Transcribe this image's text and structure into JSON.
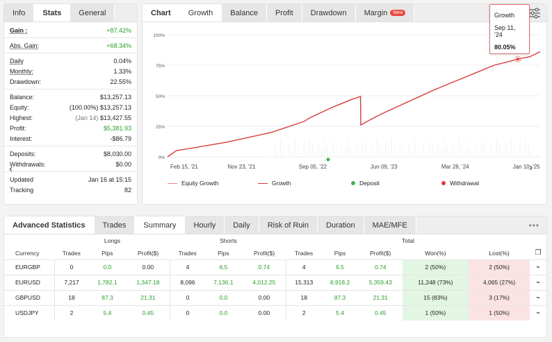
{
  "left_tabs": [
    "Info",
    "Stats",
    "General"
  ],
  "stats": {
    "gain_label": "Gain :",
    "gain": "+87.42%",
    "abs_gain_label": "Abs. Gain:",
    "abs_gain": "+68.34%",
    "daily_label": "Daily",
    "daily": "0.04%",
    "monthly_label": "Monthly:",
    "monthly": "1.33%",
    "drawdown_label": "Drawdown:",
    "drawdown": "22.55%",
    "balance_label": "Balance:",
    "balance": "$13,257.13",
    "equity_label": "Equity:",
    "equity_pct": "(100.00%)",
    "equity": "$13,257.13",
    "highest_label": "Highest:",
    "highest_date": "(Jan 14)",
    "highest": "$13,427.55",
    "profit_label": "Profit:",
    "profit": "$5,381.93",
    "interest_label": "Interest:",
    "interest": "-$86.79",
    "deposits_label": "Deposits:",
    "deposits": "$8,030.00",
    "withdrawals_label": "Withdrawals:",
    "withdrawals": "$0.00",
    "updated_label": "Updated",
    "updated": "Jan 16 at 15:15",
    "tracking_label": "Tracking",
    "tracking": "82"
  },
  "chart_tabs": [
    "Chart",
    "Growth",
    "Balance",
    "Profit",
    "Drawdown",
    "Margin"
  ],
  "new_badge": "New",
  "tooltip": {
    "series": "Growth",
    "date": "Sep 11, '24",
    "value": "80.05%"
  },
  "legend": {
    "equity": "Equity Growth",
    "growth": "Growth",
    "deposit": "Deposit",
    "withdrawal": "Withdrawal"
  },
  "colors": {
    "growth": "#d93a3a",
    "equity": "#e88a8a",
    "deposit": "#3db34a",
    "withdrawal": "#e03a3a",
    "won_bg": "#e3f6e3",
    "lost_bg": "#fbe3e3",
    "positive": "#2a9d2a"
  },
  "chart_data": {
    "type": "line",
    "x_ticks": [
      "Feb 15, '21",
      "Nov 23, '21",
      "Sep 05, '22",
      "Jun 09, '23",
      "Mar 28, '24",
      "Jan 10, '25"
    ],
    "y_ticks": [
      "0%",
      "25%",
      "50%",
      "75%",
      "100%"
    ],
    "ylim": [
      0,
      100
    ],
    "series": [
      {
        "name": "Growth",
        "points": [
          [
            0,
            0
          ],
          [
            0.03,
            5
          ],
          [
            0.2,
            12
          ],
          [
            0.35,
            20
          ],
          [
            0.46,
            29
          ],
          [
            0.48,
            32
          ],
          [
            0.55,
            40
          ],
          [
            0.58,
            43
          ],
          [
            0.6,
            45
          ],
          [
            0.62,
            47
          ],
          [
            0.645,
            49
          ],
          [
            0.65,
            49.5
          ],
          [
            0.651,
            26
          ],
          [
            0.68,
            30
          ],
          [
            0.72,
            35
          ],
          [
            0.8,
            44
          ],
          [
            0.9,
            55
          ],
          [
            0.95,
            60
          ],
          [
            1.0,
            65
          ],
          [
            1.05,
            70
          ],
          [
            1.08,
            73
          ],
          [
            1.1,
            75
          ],
          [
            1.15,
            78
          ],
          [
            1.18,
            80
          ],
          [
            1.22,
            82
          ],
          [
            1.255,
            86
          ]
        ]
      }
    ]
  },
  "bottom_tabs": [
    "Advanced Statistics",
    "Trades",
    "Summary",
    "Hourly",
    "Daily",
    "Risk of Ruin",
    "Duration",
    "MAE/MFE"
  ],
  "table": {
    "groups": [
      "Longs",
      "Shorts",
      "Total"
    ],
    "headers": [
      "Currency",
      "Trades",
      "Pips",
      "Profit($)",
      "Trades",
      "Pips",
      "Profit($)",
      "Trades",
      "Pips",
      "Profit($)",
      "Won(%)",
      "Lost(%)"
    ],
    "rows": [
      [
        "EURGBP",
        "0",
        "0.0",
        "0.00",
        "4",
        "6.5",
        "0.74",
        "4",
        "6.5",
        "0.74",
        "2 (50%)",
        "2 (50%)"
      ],
      [
        "EURUSD",
        "7,217",
        "1,782.1",
        "1,347.18",
        "8,096",
        "7,136.1",
        "4,012.25",
        "15,313",
        "8,918.2",
        "5,359.43",
        "11,248 (73%)",
        "4,065 (27%)"
      ],
      [
        "GBPUSD",
        "18",
        "87.3",
        "21.31",
        "0",
        "0.0",
        "0.00",
        "18",
        "87.3",
        "21.31",
        "15 (83%)",
        "3 (17%)"
      ],
      [
        "USDJPY",
        "2",
        "5.4",
        "0.45",
        "0",
        "0.0",
        "0.00",
        "2",
        "5.4",
        "0.45",
        "1 (50%)",
        "1 (50%)"
      ]
    ]
  }
}
